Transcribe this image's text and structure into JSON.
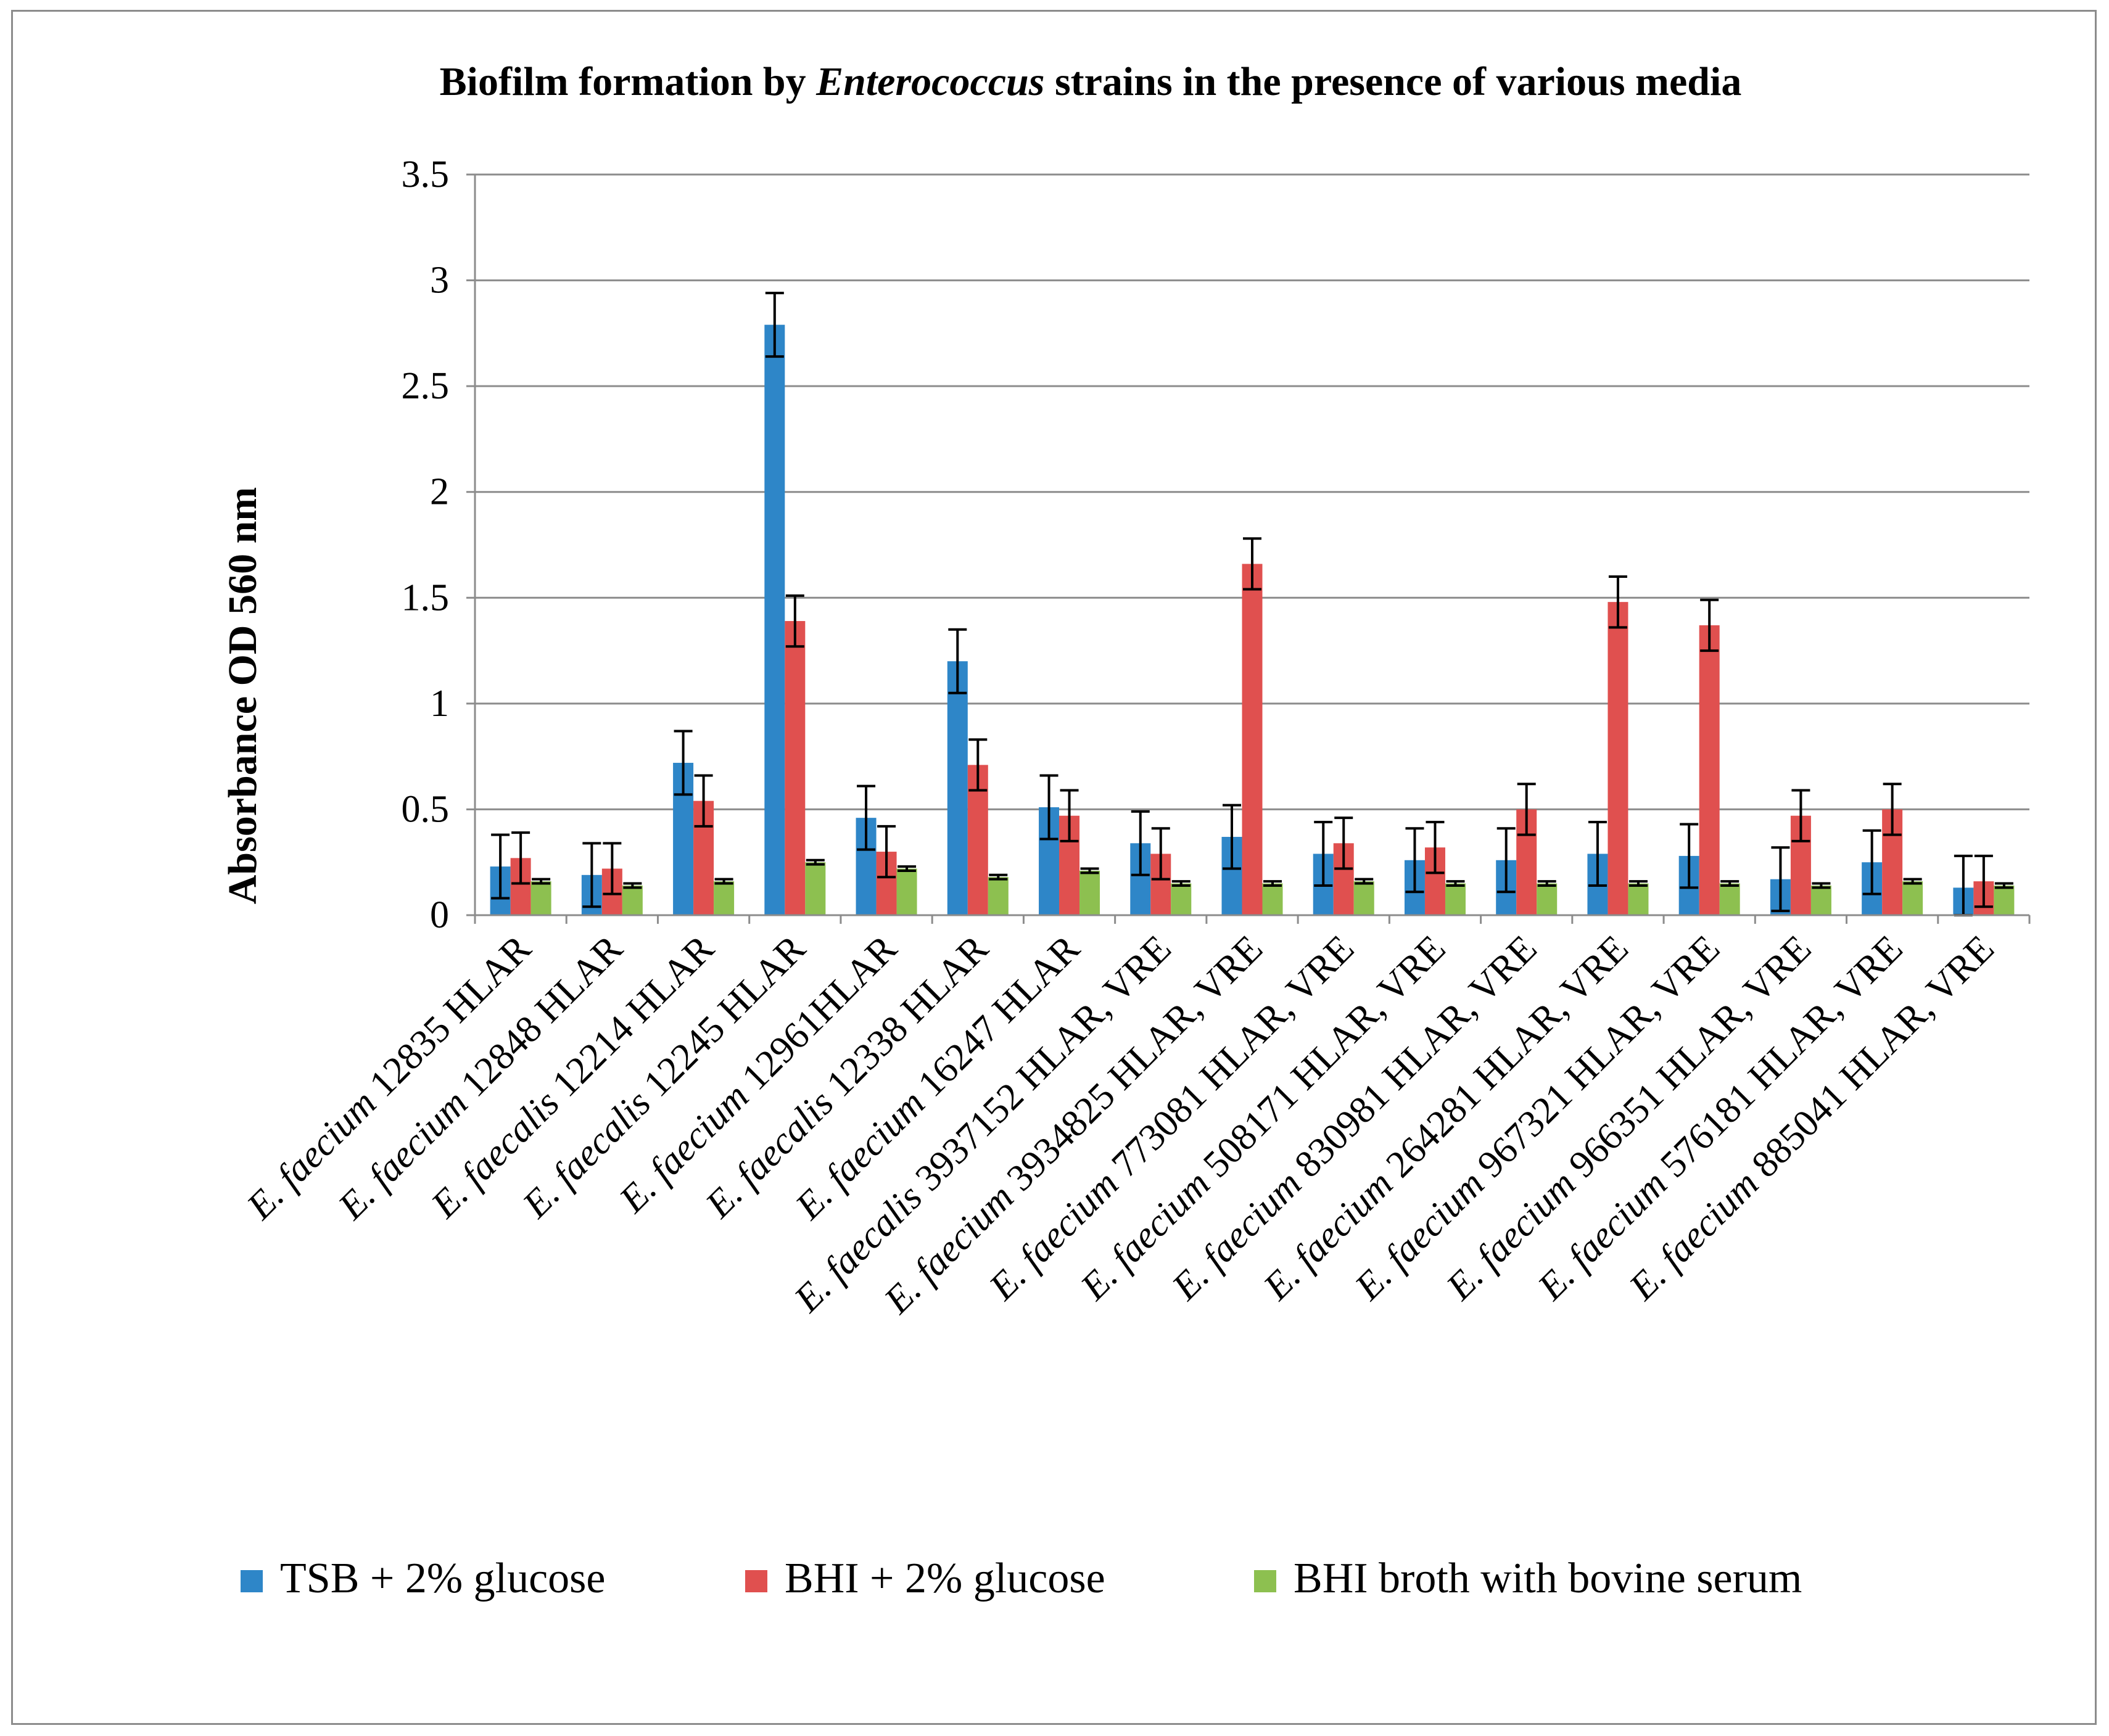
{
  "chart_data": {
    "type": "bar",
    "title_parts": [
      "Biofilm formation by ",
      "Enterococcus",
      " strains in the presence of various media"
    ],
    "xlabel": "",
    "ylabel": "Absorbance  OD 560 nm",
    "ylim": [
      0,
      3.5
    ],
    "yticks": [
      "0",
      "0.5",
      "1",
      "1.5",
      "2",
      "2.5",
      "3",
      "3.5"
    ],
    "grid": true,
    "legend_position": "bottom",
    "categories": [
      {
        "species": "E. faecium",
        "rest": " 12835 HLAR"
      },
      {
        "species": "E. faecium",
        "rest": " 12848 HLAR"
      },
      {
        "species": "E. faecalis",
        "rest": " 12214 HLAR"
      },
      {
        "species": "E. faecalis",
        "rest": " 12245 HLAR"
      },
      {
        "species": "E. faecium",
        "rest": " 12961HLAR"
      },
      {
        "species": "E. faecalis",
        "rest": " 12338 HLAR"
      },
      {
        "species": "E. faecium",
        "rest": " 16247 HLAR"
      },
      {
        "species": "E. faecalis",
        "rest": " 3937152 HLAR, VRE"
      },
      {
        "species": "E. faecium",
        "rest": " 3934825 HLAR, VRE"
      },
      {
        "species": "E. faecium",
        "rest": " 773081 HLAR, VRE"
      },
      {
        "species": "E. faecium",
        "rest": " 508171 HLAR, VRE"
      },
      {
        "species": "E. faecium",
        "rest": " 830981 HLAR, VRE"
      },
      {
        "species": "E. faecium",
        "rest": " 264281 HLAR, VRE"
      },
      {
        "species": "E. faecium",
        "rest": " 967321 HLAR, VRE"
      },
      {
        "species": "E. faecium",
        "rest": " 966351 HLAR, VRE"
      },
      {
        "species": "E. faecium",
        "rest": " 576181 HLAR, VRE"
      },
      {
        "species": "E. faecium",
        "rest": " 885041 HLAR, VRE"
      }
    ],
    "series": [
      {
        "name": "TSB + 2% glucose",
        "color": "#2e86c8",
        "values": [
          0.23,
          0.19,
          0.72,
          2.79,
          0.46,
          1.2,
          0.51,
          0.34,
          0.37,
          0.29,
          0.26,
          0.26,
          0.29,
          0.28,
          0.17,
          0.25,
          0.13
        ],
        "errors": [
          0.15,
          0.15,
          0.15,
          0.15,
          0.15,
          0.15,
          0.15,
          0.15,
          0.15,
          0.15,
          0.15,
          0.15,
          0.15,
          0.15,
          0.15,
          0.15,
          0.15
        ]
      },
      {
        "name": "BHI + 2% glucose",
        "color": "#e0504f",
        "values": [
          0.27,
          0.22,
          0.54,
          1.39,
          0.3,
          0.71,
          0.47,
          0.29,
          1.66,
          0.34,
          0.32,
          0.5,
          1.48,
          1.37,
          0.47,
          0.5,
          0.16
        ],
        "errors": [
          0.12,
          0.12,
          0.12,
          0.12,
          0.12,
          0.12,
          0.12,
          0.12,
          0.12,
          0.12,
          0.12,
          0.12,
          0.12,
          0.12,
          0.12,
          0.12,
          0.12
        ]
      },
      {
        "name": "BHI broth with bovine serum",
        "color": "#8dc050",
        "values": [
          0.16,
          0.14,
          0.16,
          0.25,
          0.22,
          0.18,
          0.21,
          0.15,
          0.15,
          0.16,
          0.15,
          0.15,
          0.15,
          0.15,
          0.14,
          0.16,
          0.14
        ],
        "errors": [
          0.01,
          0.01,
          0.01,
          0.01,
          0.01,
          0.01,
          0.01,
          0.01,
          0.01,
          0.01,
          0.01,
          0.01,
          0.01,
          0.01,
          0.01,
          0.01,
          0.01
        ]
      }
    ]
  }
}
